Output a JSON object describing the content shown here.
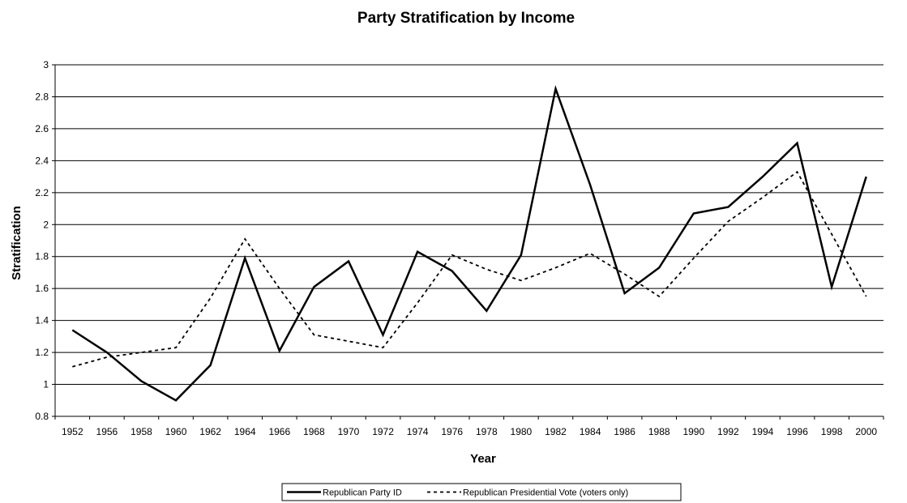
{
  "chart_data": {
    "type": "line",
    "title": "Party Stratification by Income",
    "xlabel": "Year",
    "ylabel": "Stratification",
    "categories": [
      "1952",
      "1956",
      "1958",
      "1960",
      "1962",
      "1964",
      "1966",
      "1968",
      "1970",
      "1972",
      "1974",
      "1976",
      "1978",
      "1980",
      "1982",
      "1984",
      "1986",
      "1988",
      "1990",
      "1992",
      "1994",
      "1996",
      "1998",
      "2000"
    ],
    "ylim": [
      0.8,
      3
    ],
    "yticks": [
      "0.8",
      "1",
      "1.2",
      "1.4",
      "1.6",
      "1.8",
      "2",
      "2.2",
      "2.4",
      "2.6",
      "2.8",
      "3"
    ],
    "grid": true,
    "legend_position": "bottom",
    "series": [
      {
        "name": "Republican Party ID",
        "line_style": "solid",
        "color": "#000000",
        "values": [
          1.34,
          1.2,
          1.02,
          0.9,
          1.12,
          1.79,
          1.21,
          1.61,
          1.77,
          1.31,
          1.83,
          1.71,
          1.46,
          1.81,
          2.85,
          2.25,
          1.57,
          1.73,
          2.07,
          2.11,
          2.3,
          2.51,
          1.61,
          2.3
        ]
      },
      {
        "name": "Republican Presidential Vote (voters only)",
        "line_style": "dashed",
        "color": "#000000",
        "values": [
          1.11,
          1.17,
          1.2,
          1.23,
          1.54,
          1.91,
          1.6,
          1.31,
          1.27,
          1.23,
          1.51,
          1.81,
          1.72,
          1.65,
          1.73,
          1.82,
          1.69,
          1.55,
          1.79,
          2.02,
          2.17,
          2.33,
          1.94,
          1.55
        ]
      }
    ]
  }
}
